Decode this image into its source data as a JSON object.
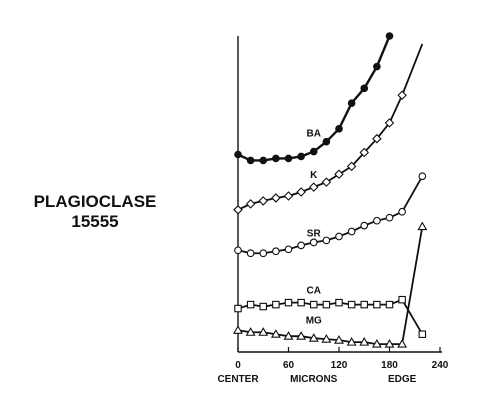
{
  "title": {
    "line1": "PLAGIOCLASE",
    "line2": "15555"
  },
  "chart_data": {
    "type": "line",
    "xlabel": "MICRONS",
    "x_ticks": [
      0,
      60,
      120,
      180,
      240
    ],
    "x_tick_labels": [
      "0",
      "60",
      "120",
      "180",
      "240"
    ],
    "x_end_labels": {
      "left": "CENTER",
      "right": "EDGE"
    },
    "xlim": [
      0,
      240
    ],
    "ylim": [
      0,
      320
    ],
    "y_ticks_shown": false,
    "grid": false,
    "series": [
      {
        "name": "BA",
        "marker": "filled-circle",
        "x": [
          0,
          15,
          30,
          45,
          60,
          75,
          90,
          105,
          120,
          135,
          150,
          165,
          180
        ],
        "y": [
          200,
          194,
          194,
          196,
          196,
          198,
          203,
          213,
          226,
          252,
          267,
          289,
          320
        ],
        "extension": null
      },
      {
        "name": "K",
        "marker": "diamond",
        "x": [
          0,
          15,
          30,
          45,
          60,
          75,
          90,
          105,
          120,
          135,
          150,
          165,
          180,
          195
        ],
        "y": [
          144,
          150,
          153,
          156,
          158,
          162,
          167,
          172,
          180,
          188,
          202,
          216,
          232,
          260
        ],
        "extension": {
          "x": 219,
          "y": 312
        }
      },
      {
        "name": "SR",
        "marker": "open-circle",
        "x": [
          0,
          15,
          30,
          45,
          60,
          75,
          90,
          105,
          120,
          135,
          150,
          165,
          180,
          195,
          219
        ],
        "y": [
          103,
          100,
          100,
          102,
          104,
          108,
          111,
          113,
          117,
          122,
          128,
          133,
          136,
          142,
          178
        ],
        "extension": null
      },
      {
        "name": "CA",
        "marker": "open-square",
        "x": [
          0,
          15,
          30,
          45,
          60,
          75,
          90,
          105,
          120,
          135,
          150,
          165,
          180,
          195,
          219
        ],
        "y": [
          44,
          48,
          46,
          48,
          50,
          50,
          48,
          48,
          50,
          48,
          48,
          48,
          48,
          53,
          18
        ],
        "extension": null
      },
      {
        "name": "MG",
        "marker": "open-triangle",
        "x": [
          0,
          15,
          30,
          45,
          60,
          75,
          90,
          105,
          120,
          135,
          150,
          165,
          180,
          195,
          219
        ],
        "y": [
          22,
          20,
          20,
          18,
          16,
          16,
          14,
          13,
          12,
          10,
          10,
          8,
          8,
          8,
          127
        ],
        "extension": null
      }
    ]
  }
}
